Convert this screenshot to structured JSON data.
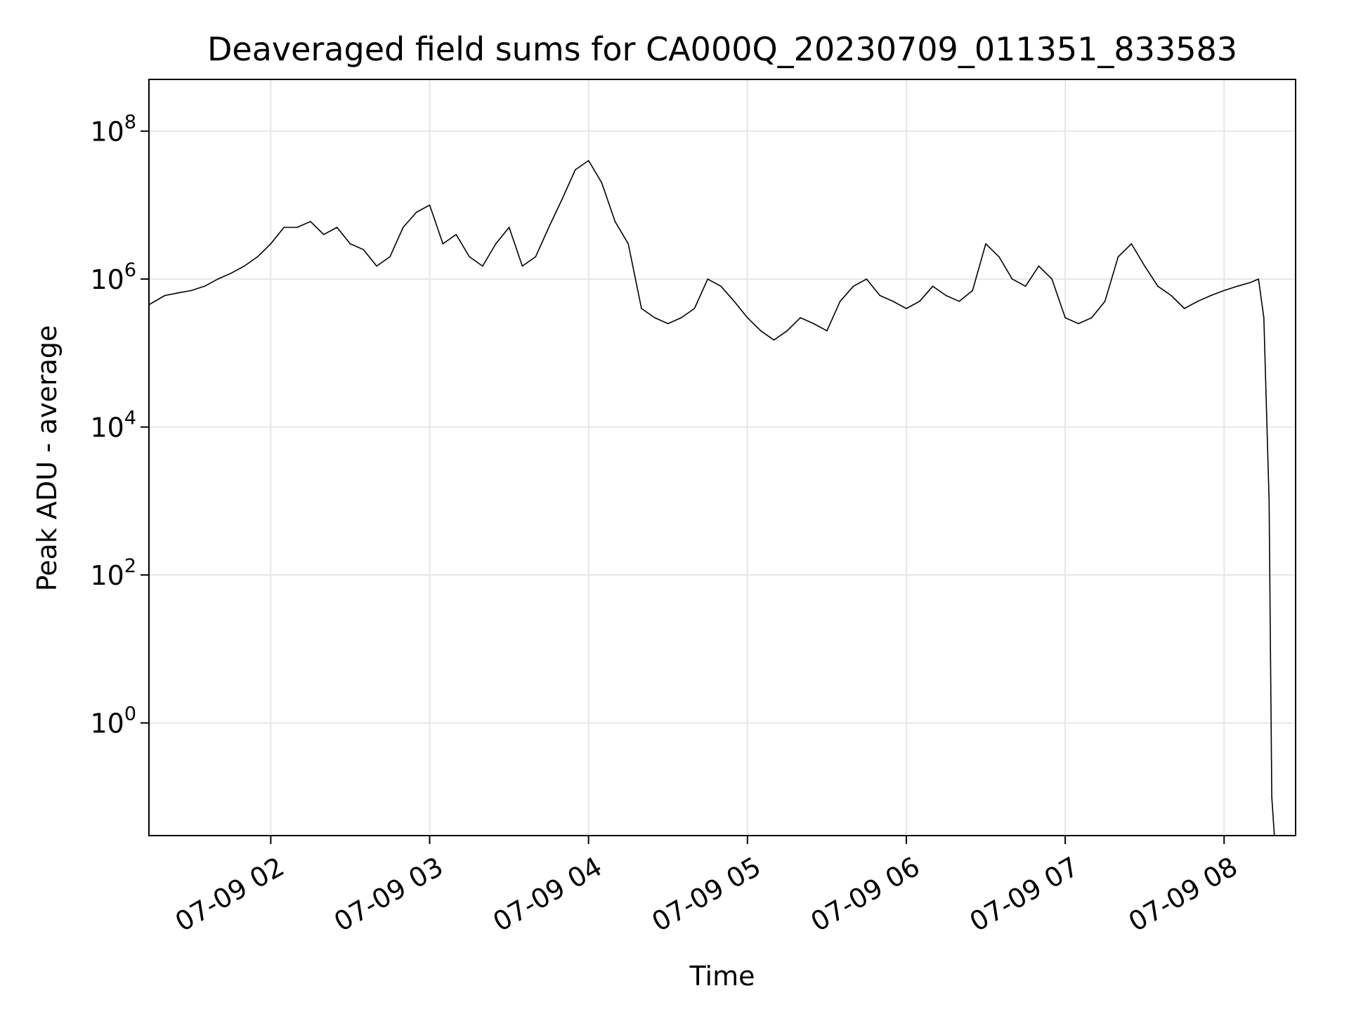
{
  "chart_data": {
    "type": "line",
    "title": "Deaveraged field sums for CA000Q_20230709_011351_833583",
    "xlabel": "Time",
    "ylabel": "Peak ADU - average",
    "yscale": "log",
    "grid": true,
    "line_color": "#000000",
    "grid_color": "#e6e6e6",
    "x_range": [
      "2023-07-09 01:14",
      "2023-07-09 08:27"
    ],
    "y_range": [
      0.03,
      500000000
    ],
    "x_ticks": [
      "07-09 02",
      "07-09 03",
      "07-09 04",
      "07-09 05",
      "07-09 06",
      "07-09 07",
      "07-09 08"
    ],
    "y_ticks": [
      {
        "value": 1,
        "base": "10",
        "exp": "0"
      },
      {
        "value": 100,
        "base": "10",
        "exp": "2"
      },
      {
        "value": 10000,
        "base": "10",
        "exp": "4"
      },
      {
        "value": 1000000,
        "base": "10",
        "exp": "6"
      },
      {
        "value": 100000000,
        "base": "10",
        "exp": "8"
      }
    ],
    "series": [
      {
        "x": [
          "01:14",
          "01:20",
          "01:25",
          "01:30",
          "01:35",
          "01:40",
          "01:45",
          "01:50",
          "01:55",
          "02:00",
          "02:05",
          "02:10",
          "02:15",
          "02:20",
          "02:25",
          "02:30",
          "02:35",
          "02:40",
          "02:45",
          "02:50",
          "02:55",
          "03:00",
          "03:05",
          "03:10",
          "03:15",
          "03:20",
          "03:25",
          "03:30",
          "03:35",
          "03:40",
          "03:45",
          "03:50",
          "03:55",
          "04:00",
          "04:05",
          "04:10",
          "04:15",
          "04:20",
          "04:25",
          "04:30",
          "04:35",
          "04:40",
          "04:45",
          "04:50",
          "04:55",
          "05:00",
          "05:05",
          "05:10",
          "05:15",
          "05:20",
          "05:25",
          "05:30",
          "05:35",
          "05:40",
          "05:45",
          "05:50",
          "05:55",
          "06:00",
          "06:05",
          "06:10",
          "06:15",
          "06:20",
          "06:25",
          "06:30",
          "06:35",
          "06:40",
          "06:45",
          "06:50",
          "06:55",
          "07:00",
          "07:05",
          "07:10",
          "07:15",
          "07:20",
          "07:25",
          "07:30",
          "07:35",
          "07:40",
          "07:45",
          "07:50",
          "07:55",
          "08:00",
          "08:05",
          "08:10",
          "08:13",
          "08:15",
          "08:17",
          "08:18",
          "08:19"
        ],
        "y": [
          450000,
          600000,
          650000,
          700000,
          800000,
          1000000,
          1200000,
          1500000,
          2000000,
          3000000,
          5000000,
          5000000,
          6000000,
          4000000,
          5000000,
          3000000,
          2500000,
          1500000,
          2000000,
          5000000,
          8000000,
          10000000,
          3000000,
          4000000,
          2000000,
          1500000,
          3000000,
          5000000,
          1500000,
          2000000,
          5000000,
          12000000,
          30000000,
          40000000,
          20000000,
          6000000,
          3000000,
          400000,
          300000,
          250000,
          300000,
          400000,
          1000000,
          800000,
          500000,
          300000,
          200000,
          150000,
          200000,
          300000,
          250000,
          200000,
          500000,
          800000,
          1000000,
          600000,
          500000,
          400000,
          500000,
          800000,
          600000,
          500000,
          700000,
          3000000,
          2000000,
          1000000,
          800000,
          1500000,
          1000000,
          300000,
          250000,
          300000,
          500000,
          2000000,
          3000000,
          1500000,
          800000,
          600000,
          400000,
          500000,
          600000,
          700000,
          800000,
          900000,
          1000000,
          300000,
          1000,
          0.1,
          0.03
        ]
      }
    ]
  }
}
